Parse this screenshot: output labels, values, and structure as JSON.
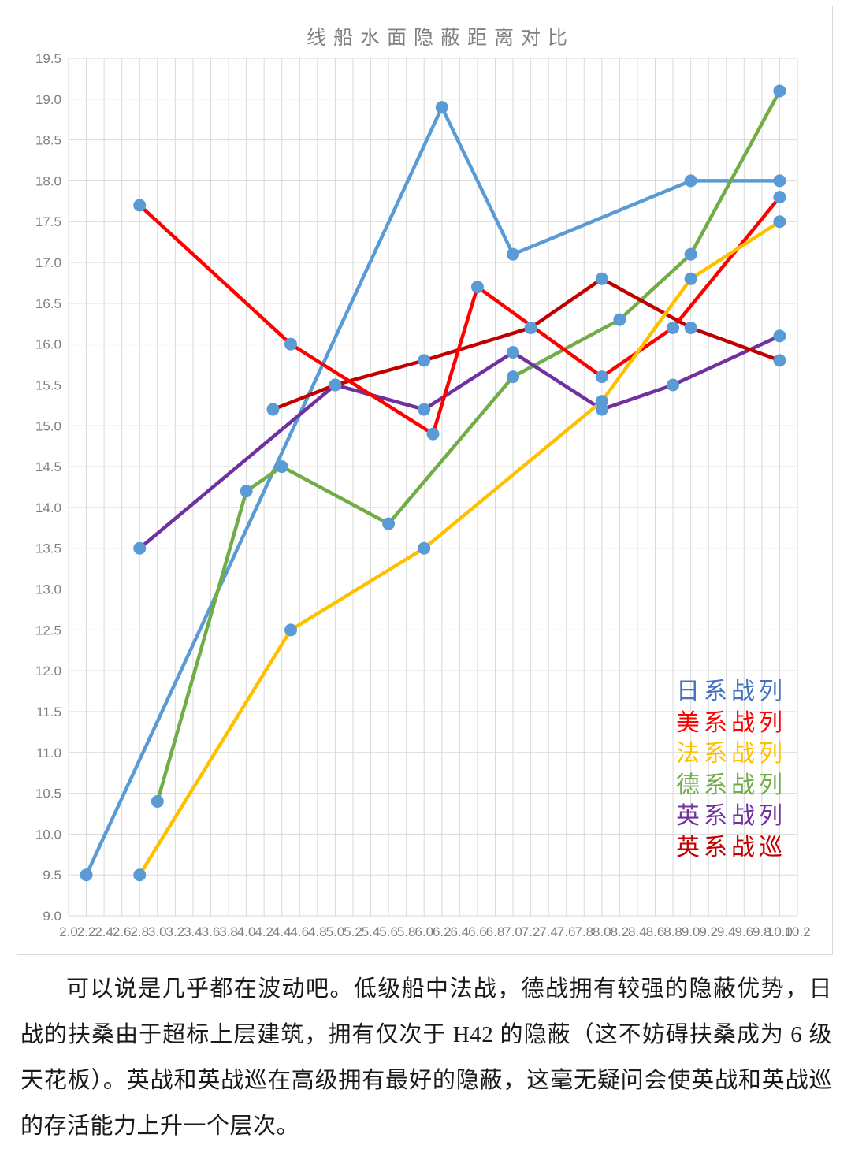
{
  "page": {
    "background": "#ffffff"
  },
  "chart": {
    "title": "线船水面隐蔽距离对比",
    "title_color": "#808080",
    "border_color": "#d9d9d9",
    "gridline_color": "#d9d9d9",
    "axis_label_color": "#7f7f7f",
    "marker_color": "#5B9BD5",
    "legend": {
      "items": [
        {
          "label": "日系战列",
          "color": "#4472C4"
        },
        {
          "label": "美系战列",
          "color": "#FF0000"
        },
        {
          "label": "法系战列",
          "color": "#FFC000"
        },
        {
          "label": "德系战列",
          "color": "#70AD47"
        },
        {
          "label": "英系战列",
          "color": "#7030A0"
        },
        {
          "label": "英系战巡",
          "color": "#C00000"
        }
      ]
    }
  },
  "chart_data": {
    "type": "line",
    "title": "线船水面隐蔽距离对比",
    "xlabel": "",
    "ylabel": "",
    "xlim": [
      2.0,
      10.2
    ],
    "ylim": [
      9.0,
      19.5
    ],
    "x_major": 0.2,
    "y_major": 0.5,
    "grid": true,
    "legend_position": "inside-right",
    "x_tick_labels": [
      "2.0",
      "2.2",
      "2.4",
      "2.6",
      "2.8",
      "3.0",
      "3.2",
      "3.4",
      "3.6",
      "3.8",
      "4.0",
      "4.2",
      "4.4",
      "4.6",
      "4.8",
      "5.0",
      "5.2",
      "5.4",
      "5.6",
      "5.8",
      "6.0",
      "6.2",
      "6.4",
      "6.6",
      "6.8",
      "7.0",
      "7.2",
      "7.4",
      "7.6",
      "7.8",
      "8.0",
      "8.2",
      "8.4",
      "8.6",
      "8.8",
      "9.0",
      "9.2",
      "9.4",
      "9.6",
      "9.8",
      "10.0",
      "10.2"
    ],
    "y_tick_labels": [
      "9.0",
      "9.5",
      "10.0",
      "10.5",
      "11.0",
      "11.5",
      "12.0",
      "12.5",
      "13.0",
      "13.5",
      "14.0",
      "14.5",
      "15.0",
      "15.5",
      "16.0",
      "16.5",
      "17.0",
      "17.5",
      "18.0",
      "18.5",
      "19.0",
      "19.5"
    ],
    "marker_color": "#5B9BD5",
    "z_order": [
      0,
      3,
      4,
      5,
      1,
      2
    ],
    "series": [
      {
        "name": "日系战列",
        "color": "#5B9BD5",
        "points": [
          [
            2.2,
            9.5
          ],
          [
            6.2,
            18.9
          ],
          [
            7.0,
            17.1
          ],
          [
            9.0,
            18.0
          ],
          [
            10.0,
            18.0
          ]
        ]
      },
      {
        "name": "美系战列",
        "color": "#FF0000",
        "points": [
          [
            2.8,
            17.7
          ],
          [
            4.5,
            16.0
          ],
          [
            6.1,
            14.9
          ],
          [
            6.6,
            16.7
          ],
          [
            8.0,
            15.6
          ],
          [
            8.8,
            16.2
          ],
          [
            10.0,
            17.8
          ]
        ]
      },
      {
        "name": "法系战列",
        "color": "#FFC000",
        "points": [
          [
            2.8,
            9.5
          ],
          [
            4.5,
            12.5
          ],
          [
            6.0,
            13.5
          ],
          [
            8.0,
            15.3
          ],
          [
            9.0,
            16.8
          ],
          [
            10.0,
            17.5
          ]
        ]
      },
      {
        "name": "德系战列",
        "color": "#70AD47",
        "points": [
          [
            3.0,
            10.4
          ],
          [
            4.0,
            14.2
          ],
          [
            4.4,
            14.5
          ],
          [
            5.6,
            13.8
          ],
          [
            7.0,
            15.6
          ],
          [
            8.2,
            16.3
          ],
          [
            9.0,
            17.1
          ],
          [
            10.0,
            19.1
          ]
        ]
      },
      {
        "name": "英系战列",
        "color": "#7030A0",
        "points": [
          [
            2.8,
            13.5
          ],
          [
            5.0,
            15.5
          ],
          [
            6.0,
            15.2
          ],
          [
            7.0,
            15.9
          ],
          [
            8.0,
            15.2
          ],
          [
            8.8,
            15.5
          ],
          [
            10.0,
            16.1
          ]
        ]
      },
      {
        "name": "英系战巡",
        "color": "#C00000",
        "points": [
          [
            4.3,
            15.2
          ],
          [
            5.0,
            15.5
          ],
          [
            6.0,
            15.8
          ],
          [
            7.2,
            16.2
          ],
          [
            8.0,
            16.8
          ],
          [
            9.0,
            16.2
          ],
          [
            10.0,
            15.8
          ]
        ]
      }
    ]
  },
  "paragraph": {
    "text": "可以说是几乎都在波动吧。低级船中法战，德战拥有较强的隐蔽优势，日战的扶桑由于超标上层建筑，拥有仅次于 H42 的隐蔽（这不妨碍扶桑成为 6 级天花板）。英战和英战巡在高级拥有最好的隐蔽，这毫无疑问会使英战和英战巡的存活能力上升一个层次。"
  }
}
